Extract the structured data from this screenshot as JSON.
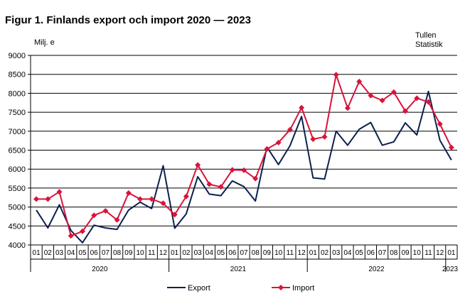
{
  "title": "Figur 1. Finlands export och import 2020 — 2023",
  "source_line1": "Tullen",
  "source_line2": "Statistik",
  "chart_data": {
    "type": "line",
    "ylabel": "Milj. e",
    "ylim": [
      4000,
      9000
    ],
    "yticks": [
      4000,
      4500,
      5000,
      5500,
      6000,
      6500,
      7000,
      7500,
      8000,
      8500,
      9000
    ],
    "grid": true,
    "legend_position": "bottom",
    "categories": [
      "01",
      "02",
      "03",
      "04",
      "05",
      "06",
      "07",
      "08",
      "09",
      "10",
      "11",
      "12",
      "01",
      "02",
      "03",
      "04",
      "05",
      "06",
      "07",
      "08",
      "09",
      "10",
      "11",
      "12",
      "01",
      "02",
      "03",
      "04",
      "05",
      "06",
      "07",
      "08",
      "09",
      "10",
      "11",
      "12",
      "01"
    ],
    "years": [
      {
        "label": "2020",
        "start": 0,
        "count": 12
      },
      {
        "label": "2021",
        "start": 12,
        "count": 12
      },
      {
        "label": "2022",
        "start": 24,
        "count": 12
      },
      {
        "label": "2023",
        "start": 36,
        "count": 1
      }
    ],
    "series": [
      {
        "name": "Export",
        "color": "#0d1f4f",
        "marker": "none",
        "values": [
          4920,
          4450,
          5060,
          4380,
          4060,
          4520,
          4450,
          4410,
          4920,
          5130,
          4960,
          6090,
          4440,
          4820,
          5800,
          5340,
          5300,
          5690,
          5540,
          5160,
          6580,
          6120,
          6620,
          7390,
          5770,
          5740,
          7000,
          6630,
          7050,
          7230,
          6630,
          6720,
          7220,
          6900,
          8050,
          6760,
          6240
        ]
      },
      {
        "name": "Import",
        "color": "#d8143a",
        "marker": "diamond",
        "values": [
          5210,
          5210,
          5400,
          4240,
          4360,
          4780,
          4900,
          4660,
          5370,
          5210,
          5210,
          5100,
          4800,
          5280,
          6110,
          5600,
          5530,
          5980,
          5970,
          5750,
          6530,
          6700,
          7040,
          7620,
          6790,
          6850,
          8490,
          7610,
          8310,
          7940,
          7810,
          8030,
          7530,
          7870,
          7770,
          7190,
          6570
        ]
      }
    ]
  }
}
